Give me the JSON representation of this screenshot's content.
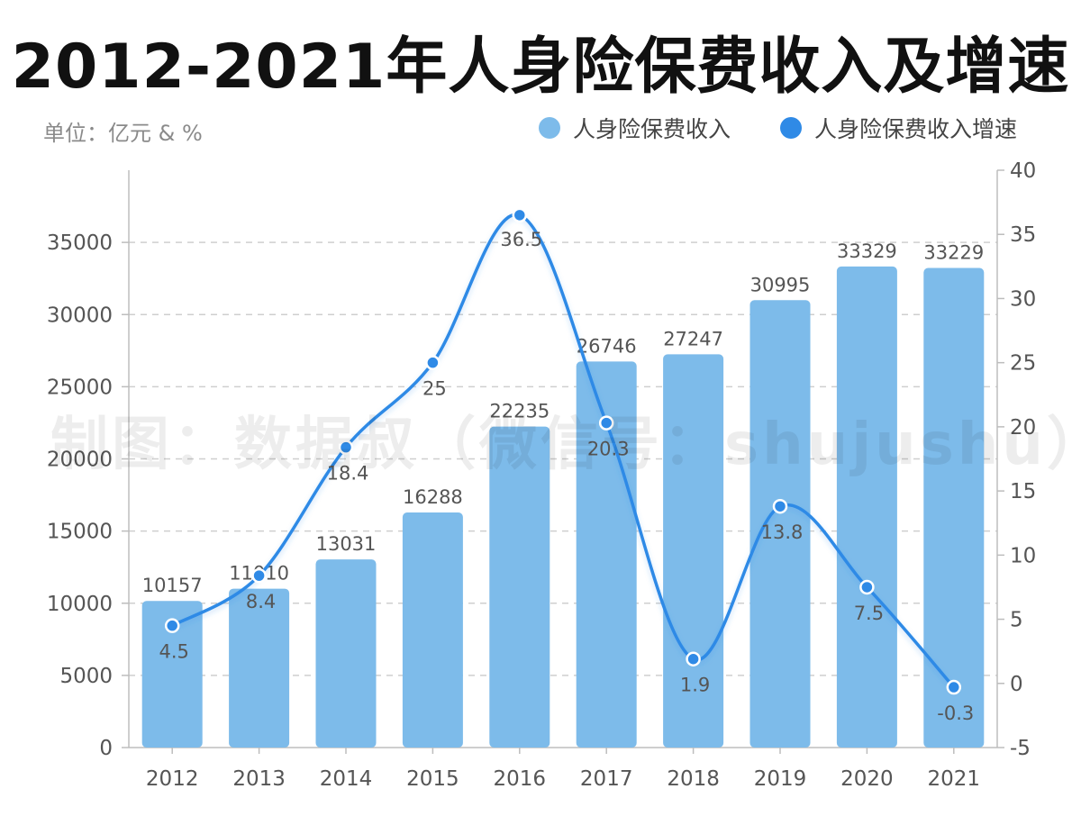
{
  "title": "2012-2021年人身险保费收入及增速",
  "unit": "单位：亿元 & %",
  "watermark": "制图：数据叔（微信号：shujushu）",
  "colors": {
    "bar": "#7dbbea",
    "line": "#2f8ae6",
    "grid": "#cfcfcf",
    "axis_text": "#555555",
    "label_text": "#555555"
  },
  "chart_data": {
    "type": "bar+line",
    "categories": [
      "2012",
      "2013",
      "2014",
      "2015",
      "2016",
      "2017",
      "2018",
      "2019",
      "2020",
      "2021"
    ],
    "series": [
      {
        "name": "人身险保费收入",
        "type": "bar",
        "axis": "left",
        "values": [
          10157,
          11010,
          13031,
          16288,
          22235,
          26746,
          27247,
          30995,
          33329,
          33229
        ]
      },
      {
        "name": "人身险保费收入增速",
        "type": "line",
        "axis": "right",
        "values": [
          4.5,
          8.4,
          18.4,
          25,
          36.5,
          20.3,
          1.9,
          13.8,
          7.5,
          -0.3
        ]
      }
    ],
    "y_left": {
      "range": [
        0,
        40000
      ],
      "ticks": [
        0,
        5000,
        10000,
        15000,
        20000,
        25000,
        30000,
        35000
      ]
    },
    "y_right": {
      "range": [
        -5,
        40
      ],
      "ticks": [
        -5,
        0,
        5,
        10,
        15,
        20,
        25,
        30,
        35,
        40
      ]
    },
    "grid": true,
    "legend_position": "top-right"
  }
}
